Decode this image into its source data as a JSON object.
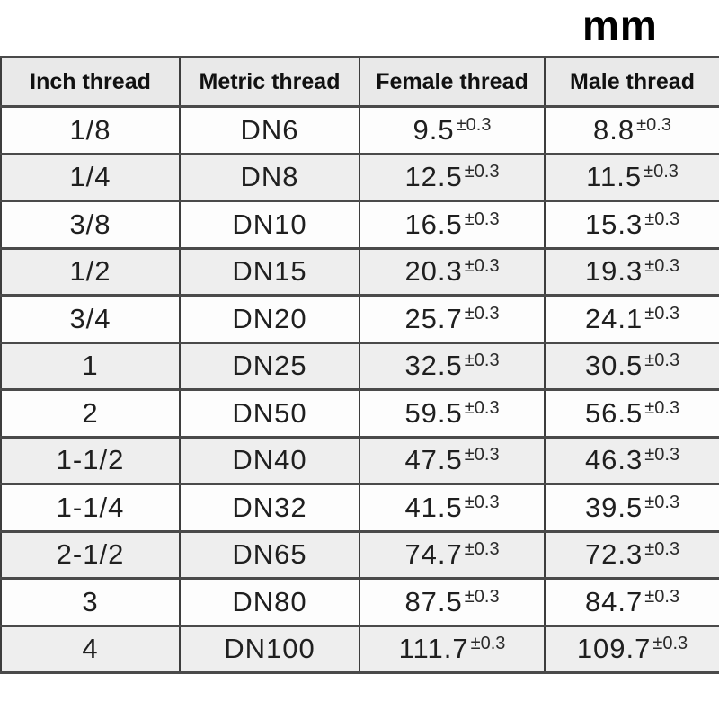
{
  "unit_label": "mm",
  "chart_data": {
    "type": "table",
    "columns": [
      "Inch thread",
      "Metric thread",
      "Female thread",
      "Male thread"
    ],
    "tolerance": "±0.3",
    "rows": [
      {
        "inch": "1/8",
        "metric": "DN6",
        "female": "9.5",
        "male": "8.8"
      },
      {
        "inch": "1/4",
        "metric": "DN8",
        "female": "12.5",
        "male": "11.5"
      },
      {
        "inch": "3/8",
        "metric": "DN10",
        "female": "16.5",
        "male": "15.3"
      },
      {
        "inch": "1/2",
        "metric": "DN15",
        "female": "20.3",
        "male": "19.3"
      },
      {
        "inch": "3/4",
        "metric": "DN20",
        "female": "25.7",
        "male": "24.1"
      },
      {
        "inch": "1",
        "metric": "DN25",
        "female": "32.5",
        "male": "30.5"
      },
      {
        "inch": "2",
        "metric": "DN50",
        "female": "59.5",
        "male": "56.5"
      },
      {
        "inch": "1-1/2",
        "metric": "DN40",
        "female": "47.5",
        "male": "46.3"
      },
      {
        "inch": "1-1/4",
        "metric": "DN32",
        "female": "41.5",
        "male": "39.5"
      },
      {
        "inch": "2-1/2",
        "metric": "DN65",
        "female": "74.7",
        "male": "72.3"
      },
      {
        "inch": "3",
        "metric": "DN80",
        "female": "87.5",
        "male": "84.7"
      },
      {
        "inch": "4",
        "metric": "DN100",
        "female": "111.7",
        "male": "109.7"
      }
    ],
    "layout_hints": {
      "header_background": "#e9e9e9",
      "even_row_background": "#eeeeee",
      "odd_row_background": "#fdfdfd",
      "border_color": "#3d3d3d",
      "unit_label_position": "top-right"
    }
  }
}
